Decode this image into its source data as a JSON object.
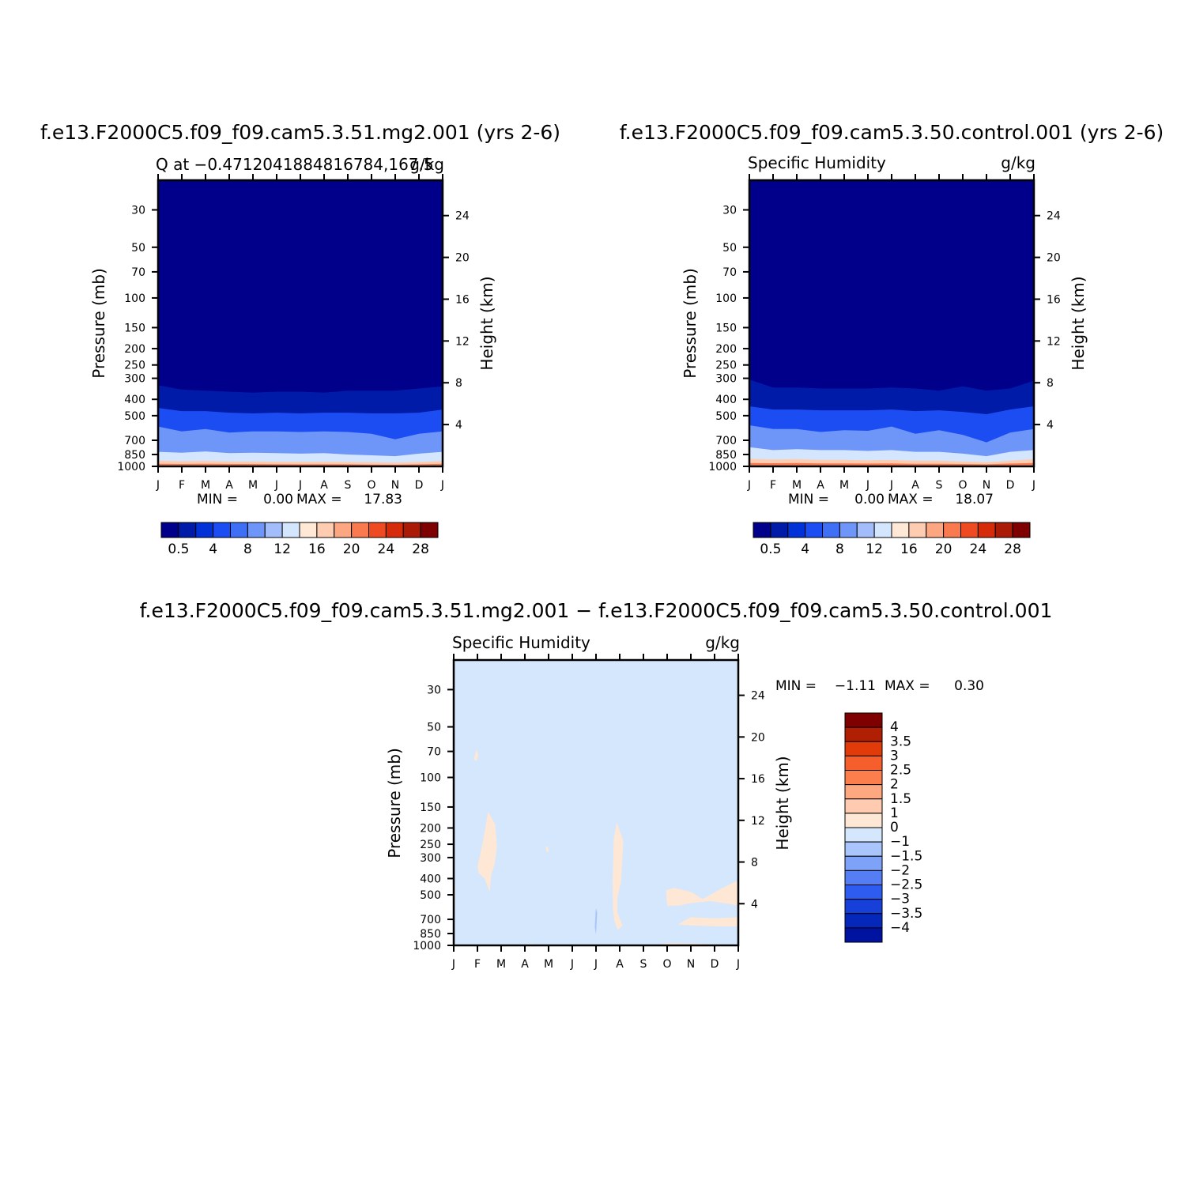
{
  "chart_data": [
    {
      "type": "contour",
      "id": "test",
      "title": "f.e13.F2000C5.f09_f09.cam5.3.51.mg2.001 (yrs 2-6)",
      "left_label": "Q at −0.4712041884816784,167.5",
      "right_label": "g/kg",
      "xlabel": "",
      "ylabel": "Pressure (mb)",
      "ylabel_right": "Height (km)",
      "x_ticks": [
        "J",
        "F",
        "M",
        "A",
        "M",
        "J",
        "J",
        "A",
        "S",
        "O",
        "N",
        "D",
        "J"
      ],
      "y_ticks": [
        30,
        50,
        70,
        100,
        150,
        200,
        250,
        300,
        400,
        500,
        700,
        850,
        1000
      ],
      "y_right_ticks": [
        4,
        8,
        12,
        16,
        20,
        24
      ],
      "ylim": [
        1000,
        20
      ],
      "y_scale": "log",
      "min_label": "MIN =",
      "min_value": "0.00",
      "max_label": "MAX =",
      "max_value": "17.83",
      "colorbar_labels": [
        "0.5",
        "4",
        "8",
        "12",
        "16",
        "20",
        "24",
        "28"
      ],
      "contour_levels_mb": {
        "l_0_5": [
          330,
          350,
          355,
          360,
          365,
          360,
          360,
          365,
          355,
          355,
          355,
          345,
          335
        ],
        "l_4": [
          450,
          470,
          470,
          480,
          485,
          480,
          485,
          480,
          480,
          485,
          485,
          480,
          460
        ],
        "l_8": [
          580,
          620,
          600,
          630,
          620,
          620,
          625,
          620,
          625,
          640,
          690,
          640,
          620
        ],
        "l_12": [
          820,
          830,
          815,
          835,
          830,
          835,
          840,
          835,
          850,
          860,
          870,
          840,
          820
        ],
        "l_16": [
          925,
          932,
          928,
          935,
          934,
          938,
          940,
          938,
          942,
          945,
          950,
          942,
          928
        ],
        "l_20": [
          965,
          968,
          965,
          968,
          968,
          970,
          972,
          970,
          972,
          975,
          978,
          972,
          965
        ]
      }
    },
    {
      "type": "contour",
      "id": "control",
      "title": "f.e13.F2000C5.f09_f09.cam5.3.50.control.001 (yrs 2-6)",
      "left_label": "Specific Humidity",
      "right_label": "g/kg",
      "xlabel": "",
      "ylabel": "Pressure (mb)",
      "ylabel_right": "Height (km)",
      "x_ticks": [
        "J",
        "F",
        "M",
        "A",
        "M",
        "J",
        "J",
        "A",
        "S",
        "O",
        "N",
        "D",
        "J"
      ],
      "y_ticks": [
        30,
        50,
        70,
        100,
        150,
        200,
        250,
        300,
        400,
        500,
        700,
        850,
        1000
      ],
      "y_right_ticks": [
        4,
        8,
        12,
        16,
        20,
        24
      ],
      "ylim": [
        1000,
        20
      ],
      "y_scale": "log",
      "min_label": "MIN =",
      "min_value": "0.00",
      "max_label": "MAX =",
      "max_value": "18.07",
      "colorbar_labels": [
        "0.5",
        "4",
        "8",
        "12",
        "16",
        "20",
        "24",
        "28"
      ],
      "contour_levels_mb": {
        "l_0_5": [
          305,
          340,
          340,
          345,
          345,
          345,
          340,
          345,
          355,
          335,
          355,
          345,
          310
        ],
        "l_4": [
          440,
          460,
          460,
          465,
          465,
          465,
          460,
          470,
          465,
          475,
          490,
          460,
          440
        ],
        "l_8": [
          570,
          600,
          600,
          625,
          610,
          615,
          580,
          640,
          610,
          650,
          720,
          630,
          600
        ],
        "l_12": [
          770,
          800,
          790,
          800,
          800,
          810,
          800,
          820,
          820,
          840,
          870,
          820,
          800
        ],
        "l_16": [
          900,
          910,
          905,
          915,
          915,
          920,
          915,
          925,
          925,
          935,
          945,
          925,
          905
        ],
        "l_20": [
          955,
          958,
          955,
          960,
          960,
          962,
          960,
          965,
          965,
          968,
          972,
          962,
          955
        ]
      }
    },
    {
      "type": "contour",
      "id": "difference",
      "title": "f.e13.F2000C5.f09_f09.cam5.3.51.mg2.001 − f.e13.F2000C5.f09_f09.cam5.3.50.control.001",
      "left_label": "Specific Humidity",
      "right_label": "g/kg",
      "xlabel": "",
      "ylabel": "Pressure (mb)",
      "ylabel_right": "Height (km)",
      "x_ticks": [
        "J",
        "F",
        "M",
        "A",
        "M",
        "J",
        "J",
        "A",
        "S",
        "O",
        "N",
        "D",
        "J"
      ],
      "y_ticks": [
        30,
        50,
        70,
        100,
        150,
        200,
        250,
        300,
        400,
        500,
        700,
        850,
        1000
      ],
      "y_right_ticks": [
        4,
        8,
        12,
        16,
        20,
        24
      ],
      "ylim": [
        1000,
        20
      ],
      "y_scale": "log",
      "min_label": "MIN =",
      "min_value": "−1.11",
      "max_label": "MAX =",
      "max_value": "0.30",
      "colorbar_labels": [
        "4",
        "3.5",
        "3",
        "2.5",
        "2",
        "1.5",
        "1",
        "0",
        "−1",
        "−1.5",
        "−2",
        "−2.5",
        "−3",
        "−3.5",
        "−4"
      ],
      "background_range": [
        -1,
        0
      ],
      "positive_regions": [
        {
          "points": [
            [
              0.0,
              470
            ],
            [
              0.07,
              420
            ],
            [
              0.05,
              600
            ],
            [
              0.0,
              620
            ]
          ]
        },
        {
          "points": [
            [
              0.85,
              78
            ],
            [
              0.95,
              68
            ],
            [
              1.05,
              74
            ],
            [
              0.95,
              80
            ]
          ]
        },
        {
          "points": [
            [
              1.0,
              340
            ],
            [
              1.2,
              255
            ],
            [
              1.45,
              160
            ],
            [
              1.75,
              190
            ],
            [
              1.82,
              260
            ],
            [
              1.72,
              330
            ],
            [
              1.58,
              380
            ],
            [
              1.52,
              480
            ],
            [
              1.3,
              400
            ],
            [
              1.05,
              370
            ]
          ]
        },
        {
          "points": [
            [
              3.88,
              265
            ],
            [
              3.97,
              255
            ],
            [
              4.0,
              275
            ],
            [
              3.92,
              278
            ]
          ]
        },
        {
          "points": [
            [
              6.72,
              620
            ],
            [
              6.7,
              430
            ],
            [
              6.75,
              230
            ],
            [
              6.88,
              185
            ],
            [
              7.15,
              240
            ],
            [
              7.05,
              420
            ],
            [
              6.9,
              520
            ],
            [
              6.9,
              640
            ],
            [
              7.12,
              760
            ],
            [
              6.92,
              810
            ],
            [
              6.78,
              720
            ]
          ]
        },
        {
          "points": [
            [
              8.95,
              470
            ],
            [
              9.3,
              455
            ],
            [
              10.0,
              480
            ],
            [
              10.5,
              530
            ],
            [
              11.4,
              450
            ],
            [
              12.0,
              410
            ],
            [
              12.0,
              580
            ],
            [
              11.4,
              560
            ],
            [
              10.8,
              545
            ],
            [
              10.0,
              560
            ],
            [
              9.5,
              580
            ],
            [
              9.0,
              580
            ]
          ]
        },
        {
          "points": [
            [
              9.45,
              750
            ],
            [
              10.0,
              680
            ],
            [
              11.0,
              690
            ],
            [
              12.0,
              680
            ],
            [
              12.0,
              770
            ],
            [
              11.0,
              770
            ],
            [
              10.0,
              760
            ]
          ]
        },
        {
          "points": [
            [
              8.6,
              990
            ],
            [
              9.0,
              970
            ],
            [
              10.2,
              975
            ],
            [
              10.8,
              985
            ],
            [
              12.0,
              995
            ],
            [
              12.0,
              1000
            ],
            [
              8.6,
              1000
            ]
          ]
        },
        {
          "points": [
            [
              2.9,
              990
            ],
            [
              3.3,
              975
            ],
            [
              3.4,
              1000
            ],
            [
              2.9,
              1000
            ]
          ]
        },
        {
          "points": [
            [
              4.8,
              995
            ],
            [
              5.3,
              985
            ],
            [
              5.6,
              1000
            ],
            [
              4.8,
              1000
            ]
          ]
        }
      ],
      "negative_regions": [
        {
          "points": [
            [
              5.95,
              780
            ],
            [
              5.98,
              640
            ],
            [
              6.0,
              600
            ],
            [
              6.05,
              640
            ],
            [
              6.02,
              760
            ],
            [
              6.0,
              860
            ]
          ]
        }
      ]
    }
  ],
  "colors": {
    "test_control_palette": [
      "#00008a",
      "#001ba8",
      "#0032d8",
      "#1c4df2",
      "#3f6ff5",
      "#6e96f8",
      "#a2bdfa",
      "#d4e6fd",
      "#ffe8d6",
      "#fecdb1",
      "#fca682",
      "#fa7a50",
      "#ef4b22",
      "#d52b0b",
      "#aa1a06",
      "#7e0000"
    ],
    "difference_palette": [
      "#7e0000",
      "#b01e04",
      "#e13b09",
      "#f65f2c",
      "#fb7e4c",
      "#fda880",
      "#fecbb0",
      "#ffe7d5",
      "#d4e7fd",
      "#a9c5fb",
      "#7ea2f8",
      "#557ef5",
      "#2e5cf0",
      "#1740d8",
      "#0528bb",
      "#0012a0"
    ]
  }
}
